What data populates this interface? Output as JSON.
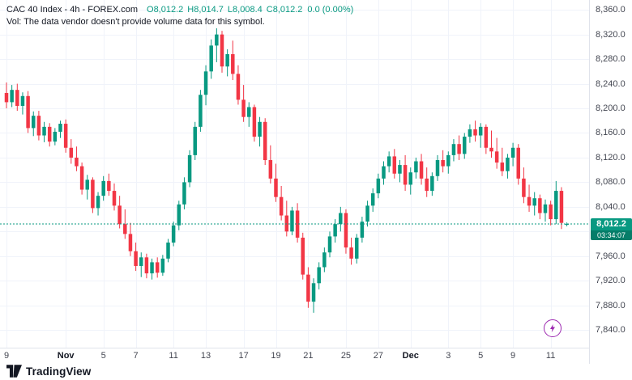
{
  "theme": {
    "background": "#ffffff",
    "grid_color": "#f0f3fa",
    "separator_color": "#e0e3eb",
    "axis_text_color": "#434651",
    "header_text_color": "#131722",
    "accent_up": "#089981",
    "accent_down": "#f23645",
    "lightning_color": "#9c27b0"
  },
  "header": {
    "title": "CAC 40 Index - 4h - FOREX.com",
    "ohlc": [
      {
        "label": "O",
        "value": "8,012.2"
      },
      {
        "label": "H",
        "value": "8,014.7"
      },
      {
        "label": "L",
        "value": "8,008.4"
      },
      {
        "label": "C",
        "value": "8,012.2"
      }
    ],
    "change": "0.0 (0.00%)",
    "volume_note": "Vol: The data vendor doesn't provide volume data for this symbol."
  },
  "price_badge": {
    "value": "8,012.2",
    "countdown": "03:34:07",
    "color": "#089981"
  },
  "footer": {
    "brand": "TradingView"
  },
  "icons": {
    "lightning": "lightning-bolt"
  },
  "chart_data": {
    "type": "candlestick",
    "title": "CAC 40 Index - 4h - FOREX.com",
    "symbol": "CAC 40 Index",
    "interval": "4h",
    "exchange": "FOREX.com",
    "up_color": "#089981",
    "down_color": "#f23645",
    "last_price": 8012.2,
    "countdown": "03:34:07",
    "grid": true,
    "y_axis": {
      "range_visible": [
        7840,
        8360
      ],
      "tick_step": 40,
      "ticks": [
        {
          "price": 8360,
          "label": "8,360.0"
        },
        {
          "price": 8320,
          "label": "8,320.0"
        },
        {
          "price": 8280,
          "label": "8,280.0"
        },
        {
          "price": 8240,
          "label": "8,240.0"
        },
        {
          "price": 8200,
          "label": "8,200.0"
        },
        {
          "price": 8160,
          "label": "8,160.0"
        },
        {
          "price": 8120,
          "label": "8,120.0"
        },
        {
          "price": 8080,
          "label": "8,080.0"
        },
        {
          "price": 8040,
          "label": "8,040.0"
        },
        {
          "price": 7960,
          "label": "7,960.0"
        },
        {
          "price": 7920,
          "label": "7,920.0"
        },
        {
          "price": 7880,
          "label": "7,880.0"
        },
        {
          "price": 7840,
          "label": "7,840.0"
        }
      ],
      "gridline_prices": [
        8360,
        8320,
        8280,
        8240,
        8200,
        8160,
        8120,
        8080,
        8040,
        8000,
        7960,
        7920,
        7880,
        7840
      ]
    },
    "x_axis": {
      "labels": [
        {
          "index": 0,
          "text": "9",
          "month": false
        },
        {
          "index": 11,
          "text": "Nov",
          "month": true
        },
        {
          "index": 18,
          "text": "5",
          "month": false
        },
        {
          "index": 24,
          "text": "7",
          "month": false
        },
        {
          "index": 31,
          "text": "11",
          "month": false
        },
        {
          "index": 37,
          "text": "13",
          "month": false
        },
        {
          "index": 44,
          "text": "17",
          "month": false
        },
        {
          "index": 50,
          "text": "19",
          "month": false
        },
        {
          "index": 56,
          "text": "21",
          "month": false
        },
        {
          "index": 63,
          "text": "25",
          "month": false
        },
        {
          "index": 69,
          "text": "27",
          "month": false
        },
        {
          "index": 75,
          "text": "Dec",
          "month": true
        },
        {
          "index": 82,
          "text": "3",
          "month": false
        },
        {
          "index": 88,
          "text": "5",
          "month": false
        },
        {
          "index": 94,
          "text": "9",
          "month": false
        },
        {
          "index": 101,
          "text": "11",
          "month": false
        }
      ]
    },
    "candles": [
      [
        8225,
        8242,
        8200,
        8210
      ],
      [
        8210,
        8238,
        8202,
        8230
      ],
      [
        8230,
        8240,
        8196,
        8204
      ],
      [
        8204,
        8226,
        8190,
        8220
      ],
      [
        8220,
        8228,
        8160,
        8168
      ],
      [
        8168,
        8195,
        8155,
        8188
      ],
      [
        8188,
        8196,
        8148,
        8156
      ],
      [
        8156,
        8178,
        8145,
        8170
      ],
      [
        8170,
        8176,
        8138,
        8146
      ],
      [
        8146,
        8168,
        8140,
        8162
      ],
      [
        8162,
        8180,
        8152,
        8175
      ],
      [
        8175,
        8182,
        8128,
        8136
      ],
      [
        8136,
        8150,
        8110,
        8120
      ],
      [
        8120,
        8138,
        8098,
        8106
      ],
      [
        8106,
        8112,
        8060,
        8068
      ],
      [
        8068,
        8092,
        8052,
        8084
      ],
      [
        8084,
        8088,
        8030,
        8038
      ],
      [
        8038,
        8064,
        8026,
        8058
      ],
      [
        8058,
        8090,
        8050,
        8082
      ],
      [
        8082,
        8094,
        8058,
        8066
      ],
      [
        8066,
        8078,
        8034,
        8042
      ],
      [
        8042,
        8058,
        8005,
        8012
      ],
      [
        8012,
        8036,
        7988,
        7996
      ],
      [
        7996,
        8014,
        7960,
        7968
      ],
      [
        7968,
        7982,
        7936,
        7944
      ],
      [
        7944,
        7966,
        7926,
        7958
      ],
      [
        7958,
        7964,
        7924,
        7932
      ],
      [
        7932,
        7956,
        7922,
        7950
      ],
      [
        7950,
        7958,
        7925,
        7933
      ],
      [
        7933,
        7962,
        7928,
        7956
      ],
      [
        7956,
        7988,
        7950,
        7982
      ],
      [
        7982,
        8016,
        7976,
        8010
      ],
      [
        8010,
        8050,
        8002,
        8044
      ],
      [
        8044,
        8088,
        8036,
        8080
      ],
      [
        8080,
        8132,
        8072,
        8124
      ],
      [
        8124,
        8178,
        8116,
        8170
      ],
      [
        8170,
        8230,
        8162,
        8222
      ],
      [
        8222,
        8270,
        8205,
        8260
      ],
      [
        8260,
        8312,
        8248,
        8302
      ],
      [
        8302,
        8330,
        8275,
        8320
      ],
      [
        8320,
        8326,
        8258,
        8268
      ],
      [
        8268,
        8296,
        8252,
        8288
      ],
      [
        8288,
        8310,
        8246,
        8256
      ],
      [
        8256,
        8270,
        8206,
        8214
      ],
      [
        8214,
        8238,
        8178,
        8186
      ],
      [
        8186,
        8210,
        8170,
        8202
      ],
      [
        8202,
        8206,
        8146,
        8154
      ],
      [
        8154,
        8186,
        8138,
        8178
      ],
      [
        8178,
        8184,
        8108,
        8116
      ],
      [
        8116,
        8140,
        8078,
        8086
      ],
      [
        8086,
        8110,
        8048,
        8056
      ],
      [
        8056,
        8074,
        8018,
        8026
      ],
      [
        8026,
        8050,
        7992,
        8000
      ],
      [
        8000,
        8040,
        7994,
        8034
      ],
      [
        8034,
        8046,
        7982,
        7990
      ],
      [
        7990,
        7998,
        7922,
        7930
      ],
      [
        7930,
        7942,
        7876,
        7886
      ],
      [
        7886,
        7924,
        7868,
        7916
      ],
      [
        7916,
        7950,
        7906,
        7942
      ],
      [
        7942,
        7974,
        7934,
        7966
      ],
      [
        7966,
        8000,
        7958,
        7992
      ],
      [
        7992,
        8020,
        7982,
        8012
      ],
      [
        8012,
        8040,
        8000,
        8030
      ],
      [
        8030,
        8036,
        7964,
        7974
      ],
      [
        7974,
        7990,
        7946,
        7956
      ],
      [
        7956,
        7996,
        7948,
        7990
      ],
      [
        7990,
        8024,
        7982,
        8016
      ],
      [
        8016,
        8050,
        8008,
        8042
      ],
      [
        8042,
        8070,
        8032,
        8062
      ],
      [
        8062,
        8094,
        8054,
        8086
      ],
      [
        8086,
        8114,
        8076,
        8106
      ],
      [
        8106,
        8130,
        8096,
        8122
      ],
      [
        8122,
        8134,
        8086,
        8094
      ],
      [
        8094,
        8116,
        8080,
        8108
      ],
      [
        8108,
        8124,
        8066,
        8076
      ],
      [
        8076,
        8104,
        8060,
        8096
      ],
      [
        8096,
        8120,
        8086,
        8114
      ],
      [
        8114,
        8126,
        8076,
        8086
      ],
      [
        8086,
        8104,
        8056,
        8066
      ],
      [
        8066,
        8096,
        8058,
        8090
      ],
      [
        8090,
        8124,
        8082,
        8116
      ],
      [
        8116,
        8132,
        8096,
        8106
      ],
      [
        8106,
        8130,
        8094,
        8124
      ],
      [
        8124,
        8150,
        8114,
        8142
      ],
      [
        8142,
        8156,
        8116,
        8126
      ],
      [
        8126,
        8160,
        8118,
        8154
      ],
      [
        8154,
        8174,
        8144,
        8166
      ],
      [
        8166,
        8180,
        8146,
        8156
      ],
      [
        8156,
        8176,
        8136,
        8170
      ],
      [
        8170,
        8174,
        8126,
        8136
      ],
      [
        8136,
        8164,
        8120,
        8130
      ],
      [
        8130,
        8152,
        8102,
        8112
      ],
      [
        8112,
        8136,
        8090,
        8098
      ],
      [
        8098,
        8126,
        8086,
        8120
      ],
      [
        8120,
        8144,
        8106,
        8136
      ],
      [
        8136,
        8142,
        8076,
        8086
      ],
      [
        8086,
        8104,
        8046,
        8056
      ],
      [
        8056,
        8076,
        8032,
        8042
      ],
      [
        8042,
        8064,
        8026,
        8054
      ],
      [
        8054,
        8060,
        8020,
        8030
      ],
      [
        8030,
        8052,
        8016,
        8044
      ],
      [
        8044,
        8050,
        8010,
        8020
      ],
      [
        8020,
        8082,
        8012,
        8066
      ],
      [
        8066,
        8072,
        8004,
        8014
      ],
      [
        8012.2,
        8014.7,
        8008.4,
        8012.2
      ]
    ]
  }
}
